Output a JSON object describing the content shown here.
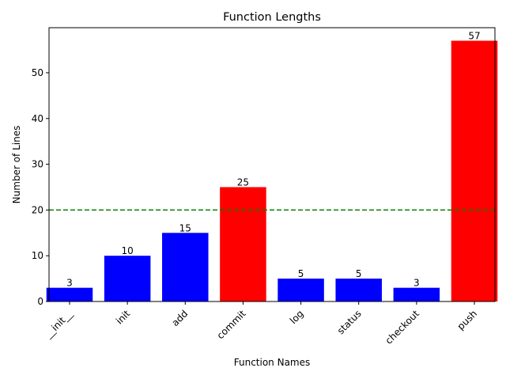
{
  "chart_data": {
    "type": "bar",
    "title": "Function Lengths",
    "xlabel": "Function Names",
    "ylabel": "Number of Lines",
    "categories": [
      "__init__",
      "init",
      "add",
      "commit",
      "log",
      "status",
      "checkout",
      "push"
    ],
    "values": [
      3,
      10,
      15,
      25,
      5,
      5,
      3,
      57
    ],
    "bar_colors": [
      "#0000ff",
      "#0000ff",
      "#0000ff",
      "#ff0000",
      "#0000ff",
      "#0000ff",
      "#0000ff",
      "#ff0000"
    ],
    "threshold": {
      "value": 20,
      "color": "#008000",
      "style": "dashed"
    },
    "ylim": [
      0,
      59.85
    ],
    "yticks": [
      0,
      10,
      20,
      30,
      40,
      50
    ],
    "xtick_rotation": 45,
    "grid": false,
    "legend": "none"
  }
}
